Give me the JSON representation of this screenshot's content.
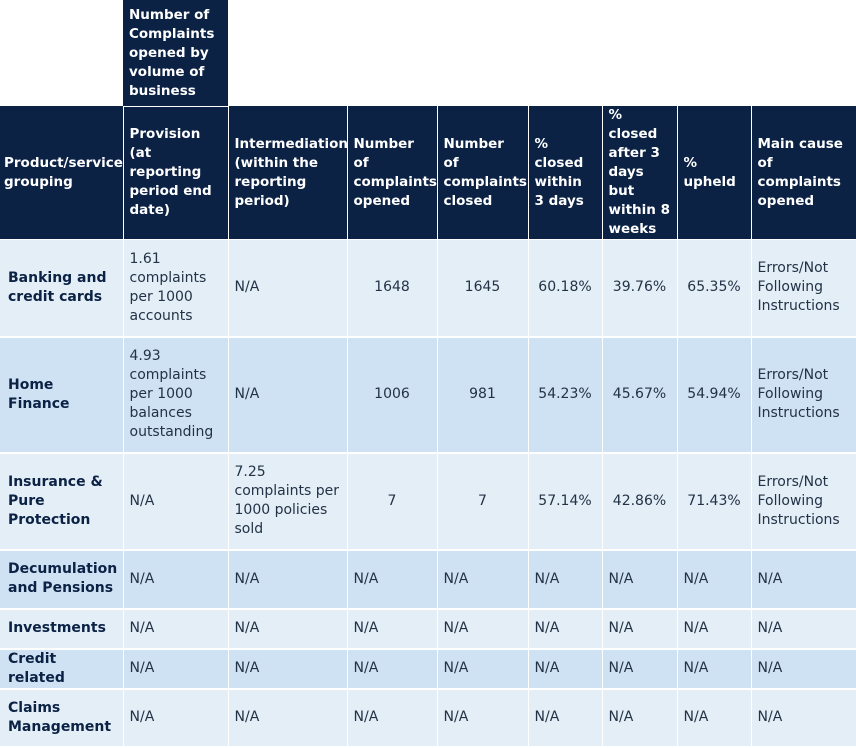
{
  "top_header": {
    "volume_heading": "Number of Complaints opened by volume of business"
  },
  "columns": {
    "grouping": "Product/service grouping",
    "provision": "Provision (at reporting period end date)",
    "intermediation": "Intermediation (within the reporting period)",
    "opened": "Number of complaints opened",
    "closed": "Number of complaints closed",
    "closed_3_days": "% closed within 3 days",
    "closed_8_weeks": "% closed after 3 days but within 8 weeks",
    "upheld": "% upheld",
    "main_cause": "Main cause of complaints opened"
  },
  "rows": [
    {
      "grouping": "Banking and credit cards",
      "provision": "1.61 complaints per 1000 accounts",
      "intermediation": "N/A",
      "opened": "1648",
      "closed": "1645",
      "closed_3_days": "60.18%",
      "closed_8_weeks": "39.76%",
      "upheld": "65.35%",
      "main_cause": "Errors/Not Following Instructions"
    },
    {
      "grouping": "Home Finance",
      "provision": "4.93 complaints per 1000 balances outstanding",
      "intermediation": "N/A",
      "opened": "1006",
      "closed": "981",
      "closed_3_days": "54.23%",
      "closed_8_weeks": "45.67%",
      "upheld": "54.94%",
      "main_cause": "Errors/Not Following Instructions"
    },
    {
      "grouping": "Insurance & Pure Protection",
      "provision": "N/A",
      "intermediation": "7.25 complaints per 1000 policies sold",
      "opened": "7",
      "closed": "7",
      "closed_3_days": "57.14%",
      "closed_8_weeks": "42.86%",
      "upheld": "71.43%",
      "main_cause": "Errors/Not Following Instructions"
    },
    {
      "grouping": "Decumulation and Pensions",
      "provision": "N/A",
      "intermediation": "N/A",
      "opened": "N/A",
      "closed": "N/A",
      "closed_3_days": "N/A",
      "closed_8_weeks": "N/A",
      "upheld": "N/A",
      "main_cause": "N/A"
    },
    {
      "grouping": "Investments",
      "provision": "N/A",
      "intermediation": "N/A",
      "opened": "N/A",
      "closed": "N/A",
      "closed_3_days": "N/A",
      "closed_8_weeks": "N/A",
      "upheld": "N/A",
      "main_cause": "N/A"
    },
    {
      "grouping": "Credit related",
      "provision": "N/A",
      "intermediation": "N/A",
      "opened": "N/A",
      "closed": "N/A",
      "closed_3_days": "N/A",
      "closed_8_weeks": "N/A",
      "upheld": "N/A",
      "main_cause": "N/A"
    },
    {
      "grouping": "Claims Management",
      "provision": "N/A",
      "intermediation": "N/A",
      "opened": "N/A",
      "closed": "N/A",
      "closed_3_days": "N/A",
      "closed_8_weeks": "N/A",
      "upheld": "N/A",
      "main_cause": "N/A"
    }
  ]
}
